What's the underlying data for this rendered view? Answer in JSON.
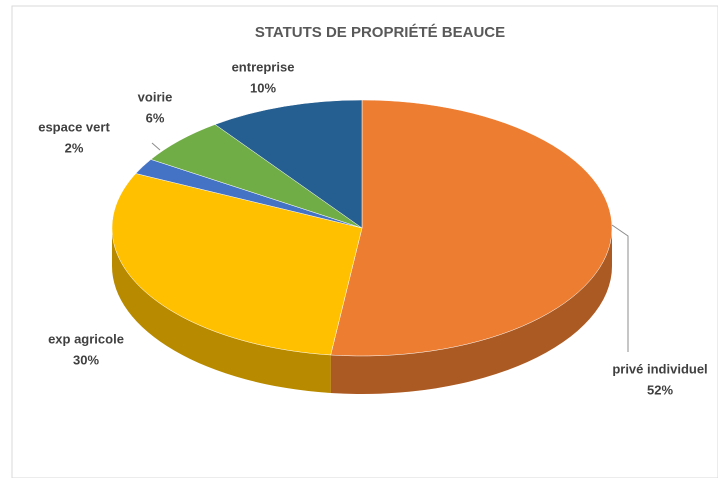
{
  "chart_data": {
    "type": "pie3d",
    "title": "STATUTS DE PROPRIÉTÉ BEAUCE",
    "categories": [
      "privé individuel",
      "exp agricole",
      "espace vert",
      "voirie",
      "entreprise"
    ],
    "values": [
      52,
      30,
      2,
      6,
      10
    ],
    "value_labels": [
      "52%",
      "30%",
      "2%",
      "6%",
      "10%"
    ],
    "colors": [
      "#ed7d31",
      "#ffc000",
      "#4472c4",
      "#70ad47",
      "#255e91"
    ]
  }
}
